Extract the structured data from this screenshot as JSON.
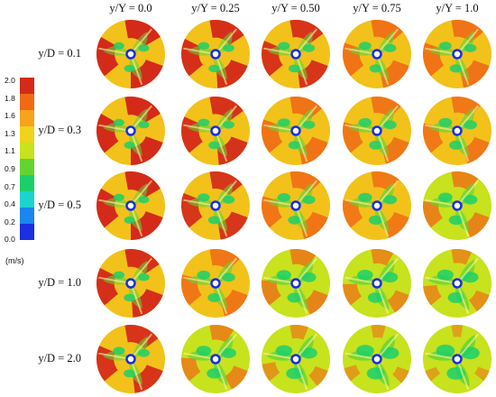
{
  "columns": [
    "y/Y = 0.0",
    "y/Y = 0.25",
    "y/Y = 0.50",
    "y/Y = 0.75",
    "y/Y = 1.0"
  ],
  "rows": [
    "y/D = 0.1",
    "y/D = 0.3",
    "y/D = 0.5",
    "y/D = 1.0",
    "y/D = 2.0"
  ],
  "colorbar": {
    "ticks": [
      "2.0",
      "1.8",
      "1.6",
      "1.3",
      "1.1",
      "0.9",
      "0.7",
      "0.4",
      "0.2",
      "0.0"
    ],
    "unit": "(m/s)",
    "colors": [
      "#d42a1a",
      "#f06a16",
      "#f8a31a",
      "#f2d21a",
      "#c8e21d",
      "#62d431",
      "#1bd06b",
      "#1cd3cf",
      "#1a86ee",
      "#1a2fe0"
    ]
  },
  "intensity": [
    [
      1.0,
      0.95,
      0.9,
      0.85,
      0.85
    ],
    [
      1.0,
      0.92,
      0.85,
      0.78,
      0.75
    ],
    [
      1.0,
      0.88,
      0.8,
      0.72,
      0.68
    ],
    [
      0.95,
      0.78,
      0.65,
      0.55,
      0.5
    ],
    [
      0.9,
      0.6,
      0.45,
      0.35,
      0.28
    ]
  ]
}
